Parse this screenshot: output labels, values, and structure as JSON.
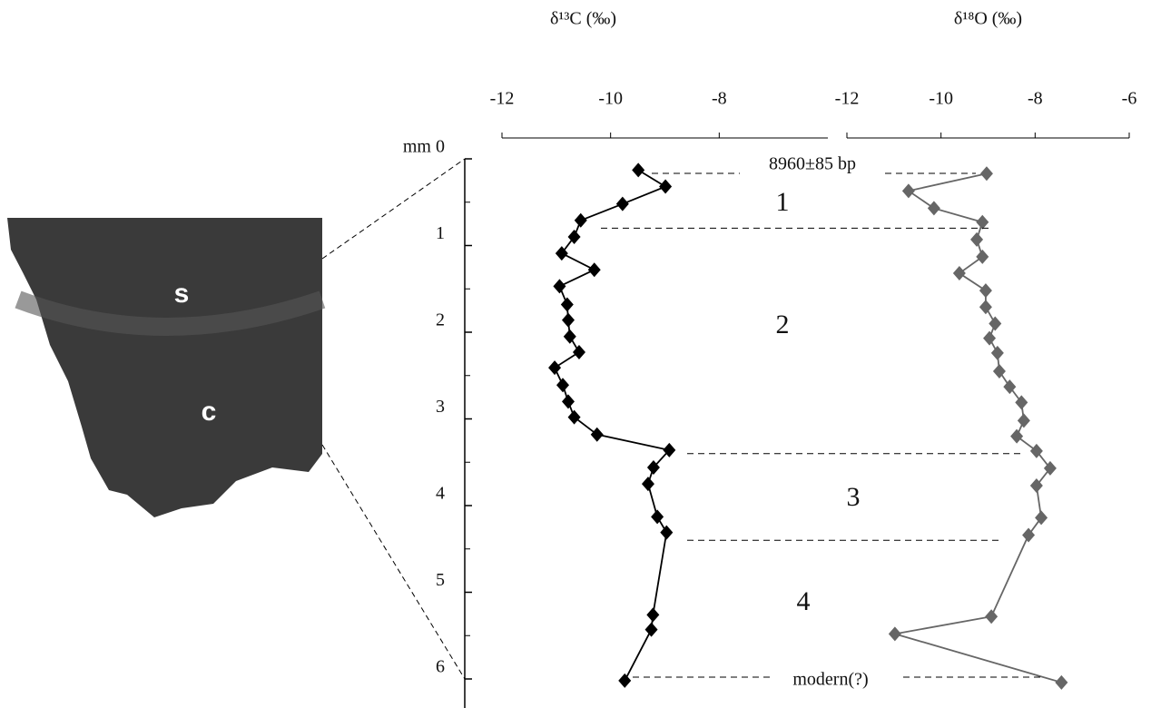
{
  "chart_data": [
    {
      "type": "line",
      "xlabel": "δ¹³C (‰)",
      "color": "#000000",
      "xlim": [
        -12,
        -6
      ],
      "xticks": [
        -12,
        -10,
        -8
      ],
      "ylim": [
        0,
        6
      ],
      "yticks": [
        {
          "value": 0,
          "label": "mm 0"
        },
        1,
        2,
        3,
        4,
        5,
        6
      ],
      "x": [
        -9.49,
        -8.99,
        -9.78,
        -10.55,
        -10.67,
        -10.9,
        -10.3,
        -10.94,
        -10.8,
        -10.78,
        -10.75,
        -10.58,
        -11.03,
        -10.88,
        -10.78,
        -10.67,
        -10.25,
        -8.92,
        -9.21,
        -9.31,
        -9.14,
        -8.97,
        -9.22,
        -9.25,
        -9.74
      ],
      "values": [
        0.13,
        0.32,
        0.52,
        0.71,
        0.9,
        1.09,
        1.28,
        1.47,
        1.68,
        1.86,
        2.05,
        2.23,
        2.41,
        2.61,
        2.8,
        2.98,
        3.18,
        3.36,
        3.56,
        3.75,
        4.13,
        4.31,
        5.26,
        5.43,
        6.02
      ]
    },
    {
      "type": "line",
      "xlabel": "δ¹⁸O (‰)",
      "color": "#666666",
      "xlim": [
        -12,
        -6
      ],
      "xticks": [
        -12,
        -10,
        -8,
        -6
      ],
      "ylim": [
        0,
        6
      ],
      "x": [
        -9.03,
        -10.69,
        -10.15,
        -9.12,
        -9.24,
        -9.12,
        -9.61,
        -9.05,
        -9.05,
        -8.85,
        -8.97,
        -8.8,
        -8.76,
        -8.54,
        -8.29,
        -8.24,
        -8.39,
        -7.97,
        -7.68,
        -7.97,
        -7.87,
        -8.14,
        -8.93,
        -10.98,
        -7.44
      ],
      "values": [
        0.17,
        0.37,
        0.57,
        0.73,
        0.93,
        1.13,
        1.32,
        1.52,
        1.71,
        1.9,
        2.07,
        2.24,
        2.45,
        2.63,
        2.81,
        3.02,
        3.2,
        3.37,
        3.57,
        3.77,
        4.14,
        4.34,
        5.28,
        5.48,
        6.04
      ]
    }
  ],
  "annotations": [
    "8960±85 bp",
    "modern(?)"
  ],
  "zones": [
    "1",
    "2",
    "3",
    "4"
  ],
  "boundaries": [
    0.8,
    3.4,
    4.4
  ],
  "photo": {
    "labels": [
      "s",
      "c"
    ]
  }
}
